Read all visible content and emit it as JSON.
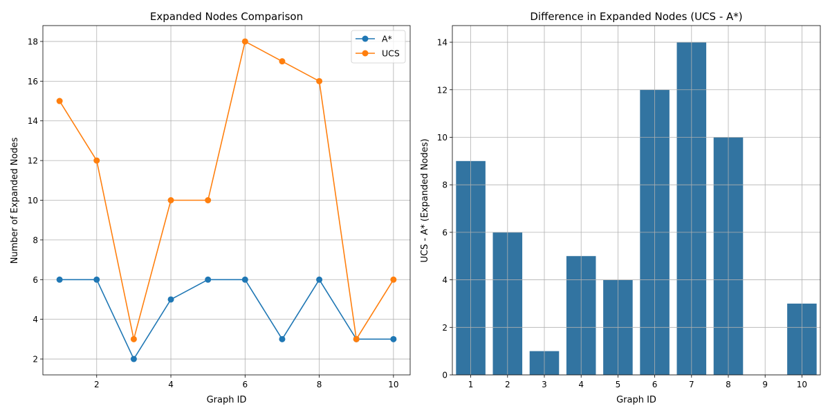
{
  "chart_data": [
    {
      "type": "line",
      "title": "Expanded Nodes Comparison",
      "xlabel": "Graph ID",
      "ylabel": "Number of Expanded Nodes",
      "x": [
        1,
        2,
        3,
        4,
        5,
        6,
        7,
        8,
        9,
        10
      ],
      "xticks": [
        2,
        4,
        6,
        8,
        10
      ],
      "yticks": [
        2,
        4,
        6,
        8,
        10,
        12,
        14,
        16,
        18
      ],
      "xlim": [
        0.55,
        10.45
      ],
      "ylim": [
        1.2,
        18.8
      ],
      "grid": true,
      "legend": "top-right",
      "series": [
        {
          "name": "A*",
          "color": "#1f77b4",
          "values": [
            6,
            6,
            2,
            5,
            6,
            6,
            3,
            6,
            3,
            3
          ]
        },
        {
          "name": "UCS",
          "color": "#ff7f0e",
          "values": [
            15,
            12,
            3,
            10,
            10,
            18,
            17,
            16,
            3,
            6
          ]
        }
      ]
    },
    {
      "type": "bar",
      "title": "Difference in Expanded Nodes (UCS - A*)",
      "xlabel": "Graph ID",
      "ylabel": "UCS - A* (Expanded Nodes)",
      "categories": [
        "1",
        "2",
        "3",
        "4",
        "5",
        "6",
        "7",
        "8",
        "9",
        "10"
      ],
      "values": [
        9,
        6,
        1,
        5,
        4,
        12,
        14,
        10,
        0,
        3
      ],
      "yticks": [
        0,
        2,
        4,
        6,
        8,
        10,
        12,
        14
      ],
      "ylim": [
        0,
        14.7
      ],
      "grid": true,
      "color": "#3274a1"
    }
  ]
}
